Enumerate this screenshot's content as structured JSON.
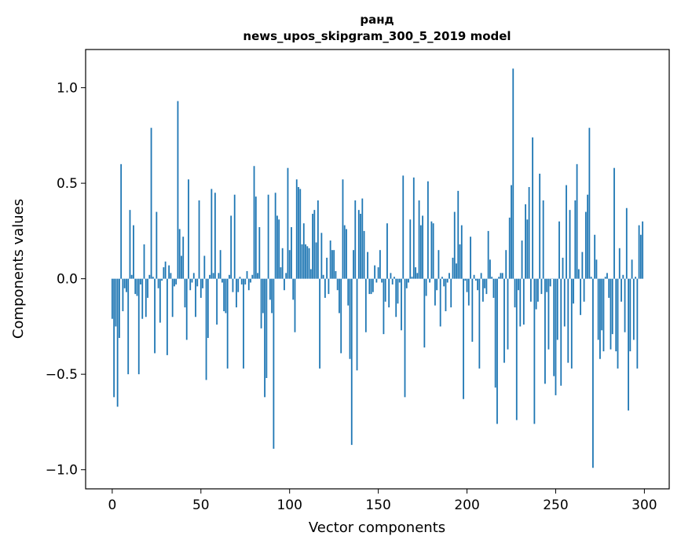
{
  "chart_data": {
    "type": "bar",
    "title": "ранд",
    "subtitle": "news_upos_skipgram_300_5_2019 model",
    "xlabel": "Vector components",
    "ylabel": "Components values",
    "xlim": [
      -15,
      314
    ],
    "ylim": [
      -1.1,
      1.2
    ],
    "xticks": [
      0,
      50,
      100,
      150,
      200,
      250,
      300
    ],
    "yticks": [
      -1.0,
      -0.5,
      0.0,
      0.5,
      1.0
    ],
    "ytick_labels": [
      "−1.0",
      "−0.5",
      "0.0",
      "0.5",
      "1.0"
    ],
    "grid": false,
    "bar_color": "#1f77b4",
    "values": [
      -0.21,
      -0.62,
      -0.25,
      -0.67,
      -0.31,
      0.6,
      -0.17,
      -0.05,
      -0.07,
      -0.5,
      0.36,
      0.02,
      0.28,
      -0.08,
      -0.09,
      -0.5,
      -0.03,
      -0.21,
      0.18,
      -0.2,
      -0.1,
      0.02,
      0.79,
      0.01,
      -0.39,
      0.35,
      -0.05,
      -0.23,
      -0.01,
      0.06,
      0.09,
      -0.4,
      0.07,
      0.03,
      -0.2,
      -0.04,
      -0.03,
      0.93,
      0.26,
      0.12,
      0.22,
      -0.15,
      -0.32,
      0.52,
      -0.06,
      -0.02,
      0.03,
      -0.2,
      -0.04,
      0.41,
      -0.1,
      -0.05,
      0.12,
      -0.53,
      -0.31,
      0.02,
      0.47,
      0.03,
      0.45,
      -0.24,
      0.03,
      0.15,
      -0.02,
      -0.17,
      -0.18,
      -0.47,
      0.02,
      0.33,
      -0.07,
      0.44,
      -0.15,
      -0.07,
      0.01,
      -0.03,
      -0.47,
      -0.03,
      0.04,
      -0.06,
      -0.02,
      0.02,
      0.59,
      0.43,
      0.03,
      0.27,
      -0.26,
      -0.18,
      -0.62,
      -0.52,
      0.44,
      -0.11,
      -0.18,
      -0.89,
      0.45,
      0.33,
      0.31,
      0.06,
      0.16,
      -0.06,
      0.03,
      0.58,
      0.15,
      0.27,
      -0.11,
      -0.28,
      0.52,
      0.48,
      0.47,
      0.18,
      0.29,
      0.18,
      0.17,
      0.16,
      0.05,
      0.34,
      0.36,
      0.19,
      0.41,
      -0.47,
      0.24,
      0.02,
      -0.1,
      0.11,
      -0.08,
      0.2,
      0.15,
      0.15,
      0.04,
      -0.06,
      -0.18,
      -0.39,
      0.52,
      0.28,
      0.26,
      -0.14,
      -0.42,
      -0.87,
      0.15,
      0.41,
      -0.48,
      0.36,
      0.34,
      0.42,
      0.25,
      -0.28,
      0.14,
      -0.08,
      -0.08,
      -0.07,
      0.07,
      -0.02,
      0.06,
      0.15,
      -0.02,
      -0.29,
      -0.12,
      0.29,
      -0.15,
      0.03,
      -0.03,
      0.01,
      -0.2,
      -0.13,
      -0.02,
      -0.27,
      0.54,
      -0.62,
      -0.05,
      -0.02,
      0.31,
      0.01,
      0.53,
      0.06,
      0.03,
      0.41,
      0.28,
      0.33,
      -0.36,
      -0.09,
      0.51,
      -0.02,
      0.3,
      0.29,
      -0.14,
      -0.06,
      0.15,
      -0.25,
      0.01,
      -0.04,
      -0.17,
      -0.02,
      0.03,
      -0.15,
      0.11,
      0.35,
      0.08,
      0.46,
      0.18,
      0.28,
      -0.63,
      -0.01,
      -0.07,
      -0.14,
      0.22,
      -0.33,
      0.02,
      -0.01,
      -0.06,
      -0.47,
      0.03,
      -0.12,
      -0.05,
      -0.08,
      0.25,
      0.1,
      0.01,
      -0.1,
      -0.57,
      -0.76,
      0.01,
      0.03,
      0.03,
      -0.44,
      0.15,
      -0.37,
      0.32,
      0.49,
      1.1,
      -0.15,
      -0.74,
      -0.06,
      -0.25,
      0.2,
      -0.24,
      0.39,
      0.31,
      0.48,
      -0.12,
      0.74,
      -0.76,
      -0.16,
      -0.12,
      0.55,
      -0.08,
      0.41,
      -0.55,
      -0.07,
      -0.37,
      -0.04,
      0.0,
      -0.51,
      -0.61,
      -0.32,
      0.3,
      -0.56,
      0.11,
      -0.25,
      0.49,
      -0.44,
      0.36,
      -0.47,
      -0.13,
      0.41,
      0.6,
      0.05,
      -0.19,
      0.14,
      -0.12,
      0.35,
      0.44,
      0.79,
      0.01,
      -0.99,
      0.23,
      0.1,
      -0.32,
      -0.42,
      -0.27,
      -0.38,
      0.01,
      0.03,
      -0.1,
      -0.37,
      -0.29,
      0.58,
      -0.38,
      -0.47,
      0.16,
      -0.12,
      0.02,
      -0.28,
      0.37,
      -0.69,
      -0.38,
      0.1,
      -0.32,
      0.01,
      -0.47,
      0.28,
      0.23,
      0.3
    ]
  }
}
